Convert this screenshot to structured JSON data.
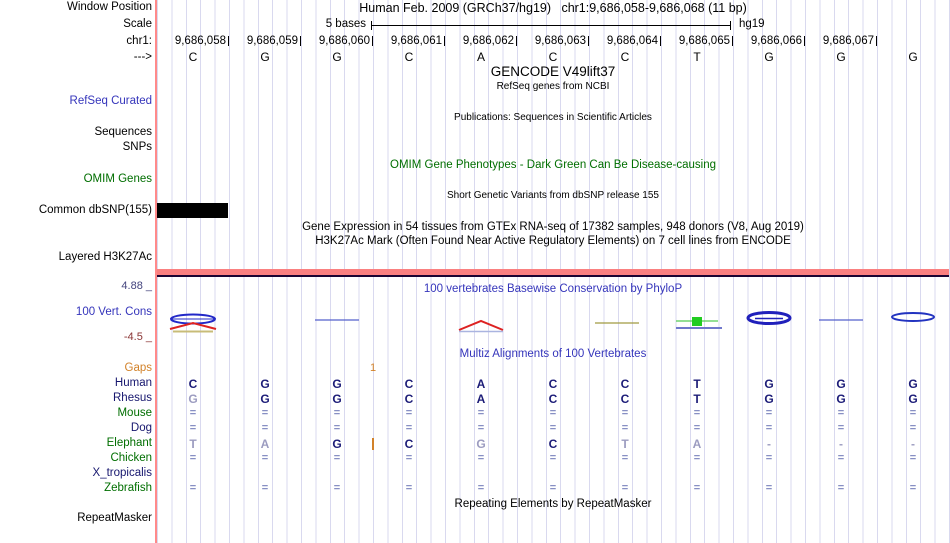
{
  "colors": {
    "gridline": "#d9d9ef",
    "left_border": "#ff8a8a",
    "track_blue": "#3535bb",
    "track_green": "#006e00",
    "gap_orange": "#d2822a",
    "match_navy": "#1c1c78",
    "mismatch_light": "#9c9cc0",
    "h3k27ac_bar": "#fa8080",
    "dbsnp_box": "#000000"
  },
  "header": {
    "window_position_label": "Window Position",
    "assembly": "Human Feb. 2009 (GRCh37/hg19)",
    "range": "chr1:9,686,058-9,686,068 (11 bp)",
    "scale_label": "Scale",
    "scale_text": "5 bases",
    "genome": "hg19",
    "chrom": "chr1:",
    "strand": "--->",
    "coordinates": [
      "9,686,058",
      "9,686,059",
      "9,686,060",
      "9,686,061",
      "9,686,062",
      "9,686,063",
      "9,686,064",
      "9,686,065",
      "9,686,066",
      "9,686,067"
    ],
    "bases": [
      "C",
      "G",
      "G",
      "C",
      "A",
      "C",
      "C",
      "T",
      "G",
      "G",
      "G"
    ]
  },
  "tracks": {
    "gencode_title": "GENCODE V49lift37",
    "refseq_subtitle": "RefSeq genes from NCBI",
    "refseq_label": "RefSeq Curated",
    "publications_title": "Publications: Sequences in Scientific Articles",
    "sequences_label": "Sequences",
    "snps_label": "SNPs",
    "omim_title": "OMIM Gene Phenotypes - Dark Green Can Be Disease-causing",
    "omim_label": "OMIM Genes",
    "dbsnp_title": "Short Genetic Variants from dbSNP release 155",
    "dbsnp_label": "Common dbSNP(155)",
    "gtex_title": "Gene Expression in 54 tissues from GTEx RNA-seq of 17382 samples, 948 donors (V8, Aug 2019)",
    "h3k27ac_title": "H3K27Ac Mark (Often Found Near Active Regulatory Elements) on 7 cell lines from ENCODE",
    "h3k27ac_label": "Layered H3K27Ac",
    "phylop_title": "100 vertebrates Basewise Conservation by PhyloP",
    "phylop_label": "100 Vert. Cons",
    "phylop_max": "4.88 _",
    "phylop_min": "-4.5 _",
    "multiz_title": "Multiz Alignments of 100 Vertebrates",
    "repeat_title": "Repeating Elements by RepeatMasker",
    "repeat_label": "RepeatMasker"
  },
  "alignment": {
    "gaps_label": "Gaps",
    "gap_count": "1",
    "gap_after_col": 3,
    "rows": [
      {
        "species": "Human",
        "label_color": "navy",
        "cells": [
          "C",
          "G",
          "G",
          "C",
          "A",
          "C",
          "C",
          "T",
          "G",
          "G",
          "G"
        ],
        "styles": [
          "d",
          "d",
          "d",
          "d",
          "d",
          "d",
          "d",
          "d",
          "d",
          "d",
          "d"
        ]
      },
      {
        "species": "Rhesus",
        "label_color": "navy",
        "cells": [
          "G",
          "G",
          "G",
          "C",
          "A",
          "C",
          "C",
          "T",
          "G",
          "G",
          "G"
        ],
        "styles": [
          "l",
          "d",
          "d",
          "d",
          "d",
          "d",
          "d",
          "d",
          "d",
          "d",
          "d"
        ]
      },
      {
        "species": "Mouse",
        "label_color": "green",
        "cells": [
          "=",
          "=",
          "=",
          "=",
          "=",
          "=",
          "=",
          "=",
          "=",
          "=",
          "="
        ],
        "styles": [
          "s",
          "s",
          "s",
          "s",
          "s",
          "s",
          "s",
          "s",
          "s",
          "s",
          "s"
        ]
      },
      {
        "species": "Dog",
        "label_color": "navy",
        "cells": [
          "=",
          "=",
          "=",
          "=",
          "=",
          "=",
          "=",
          "=",
          "=",
          "=",
          "="
        ],
        "styles": [
          "s",
          "s",
          "s",
          "s",
          "s",
          "s",
          "s",
          "s",
          "s",
          "s",
          "s"
        ]
      },
      {
        "species": "Elephant",
        "label_color": "green",
        "cells": [
          "T",
          "A",
          "G",
          "C",
          "G",
          "C",
          "T",
          "A",
          "-",
          "-",
          "-"
        ],
        "styles": [
          "l",
          "l",
          "d",
          "d",
          "l",
          "d",
          "l",
          "l",
          "g",
          "g",
          "g"
        ],
        "insert_after_col": 3
      },
      {
        "species": "Chicken",
        "label_color": "green",
        "cells": [
          "=",
          "=",
          "=",
          "=",
          "=",
          "=",
          "=",
          "=",
          "=",
          "=",
          "="
        ],
        "styles": [
          "s",
          "s",
          "s",
          "s",
          "s",
          "s",
          "s",
          "s",
          "s",
          "s",
          "s"
        ]
      },
      {
        "species": "X_tropicalis",
        "label_color": "navy",
        "cells": [
          "",
          "",
          "",
          "",
          "",
          "",
          "",
          "",
          "",
          "",
          ""
        ],
        "styles": [
          "",
          "",
          "",
          "",
          "",
          "",
          "",
          "",
          "",
          "",
          ""
        ]
      },
      {
        "species": "Zebrafish",
        "label_color": "green",
        "cells": [
          "=",
          "=",
          "=",
          "=",
          "=",
          "=",
          "=",
          "=",
          "=",
          "=",
          "="
        ],
        "styles": [
          "s",
          "s",
          "s",
          "s",
          "s",
          "s",
          "s",
          "s",
          "s",
          "s",
          "s"
        ]
      }
    ]
  },
  "conservation_glyphs": [
    {
      "col": 1,
      "type": "mixed-red-blue"
    },
    {
      "col": 3,
      "type": "blue-line"
    },
    {
      "col": 5,
      "type": "red-arch"
    },
    {
      "col": 7,
      "type": "olive-line"
    },
    {
      "col": 8,
      "type": "green-square"
    },
    {
      "col": 9,
      "type": "blue-ellipse-bold"
    },
    {
      "col": 10,
      "type": "blue-line"
    },
    {
      "col": 11,
      "type": "blue-ellipse"
    }
  ]
}
